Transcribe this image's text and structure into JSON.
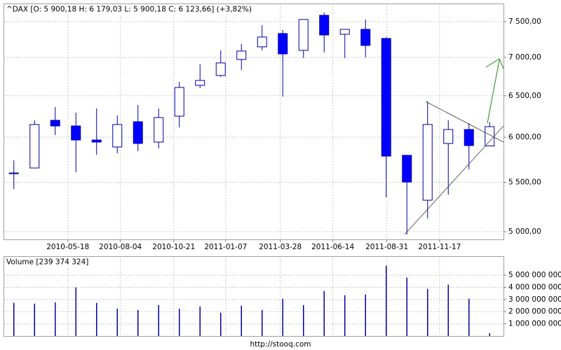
{
  "chart_data": [
    {
      "type": "candlestick",
      "title": "^DAX [O: 5 900,18  H: 6 179,03  L: 5 900,18  C: 6 123,66] (+3,82%)",
      "categories": [
        null,
        null,
        null,
        null,
        null,
        null,
        null,
        null,
        null,
        null,
        null,
        null,
        null,
        null,
        null,
        null,
        null,
        null,
        null,
        null,
        null,
        null,
        null,
        null
      ],
      "open": [
        5600,
        5654,
        6199,
        6132,
        5968,
        5888,
        6182,
        5944,
        6249,
        6632,
        6759,
        6972,
        7144,
        7329,
        7095,
        7592,
        7319,
        7389,
        7260,
        5794,
        5313,
        5928,
        6090,
        5900.18
      ],
      "high": [
        5739,
        6199,
        6360,
        6291,
        6343,
        6257,
        6385,
        6343,
        6676,
        6906,
        7095,
        7183,
        7449,
        7379,
        7531,
        7633,
        7389,
        7531,
        7280,
        5794,
        6429,
        6199,
        6165,
        6179.03
      ],
      "low": [
        5429,
        5650,
        6025,
        5608,
        5801,
        5817,
        5840,
        5872,
        6115,
        6596,
        6740,
        6832,
        7095,
        6490,
        6991,
        7066,
        6991,
        7001,
        5342,
        4973,
        5130,
        5371,
        5639,
        5900.18
      ],
      "close": [
        5600,
        6149,
        6132,
        5968,
        5944,
        6149,
        5928,
        6232,
        6605,
        6695,
        6925,
        7086,
        7280,
        7047,
        7531,
        7309,
        7389,
        7163,
        5785,
        5503,
        6149,
        6090,
        5904,
        6123.66
      ],
      "up_color": "#ffffff",
      "down_color": "#0000ff",
      "edge_color": "#0000a0",
      "log_scale": true,
      "grid": true,
      "ylim": [
        4926,
        7767
      ],
      "yticks": [
        {
          "value": 5000,
          "label": "5 000,00"
        },
        {
          "value": 5500,
          "label": "5 500,00"
        },
        {
          "value": 6000,
          "label": "6 000,00"
        },
        {
          "value": 6500,
          "label": "6 500,00"
        },
        {
          "value": 7000,
          "label": "7 000,00"
        },
        {
          "value": 7500,
          "label": "7 500,00"
        }
      ],
      "xticks": [
        {
          "value": 2.61,
          "label": "2010-05-18"
        },
        {
          "value": 5.15,
          "label": "2010-08-04"
        },
        {
          "value": 7.73,
          "label": "2010-10-21"
        },
        {
          "value": 10.24,
          "label": "2011-01-07"
        },
        {
          "value": 12.88,
          "label": "2011-03-28"
        },
        {
          "value": 15.42,
          "label": "2011-06-14"
        },
        {
          "value": 18.03,
          "label": "2011-08-31"
        },
        {
          "value": 20.58,
          "label": "2011-11-17"
        }
      ]
    },
    {
      "type": "bar",
      "title": "Volume [239 374 324]",
      "categories": [
        null,
        null,
        null,
        null,
        null,
        null,
        null,
        null,
        null,
        null,
        null,
        null,
        null,
        null,
        null,
        null,
        null,
        null,
        null,
        null,
        null,
        null,
        null,
        null
      ],
      "values": [
        2720000000,
        2660000000,
        2770000000,
        3990000000,
        2720000000,
        2250000000,
        2140000000,
        2540000000,
        2250000000,
        2430000000,
        1910000000,
        2490000000,
        2140000000,
        3060000000,
        2540000000,
        3700000000,
        3350000000,
        3410000000,
        5780000000,
        4800000000,
        3870000000,
        4220000000,
        3060000000,
        239374324
      ],
      "color": "#0000a0",
      "grid": true,
      "ylim": [
        0,
        6500000000
      ],
      "yticks": [
        {
          "value": 1000000000,
          "label": "1 000 000 000"
        },
        {
          "value": 2000000000,
          "label": "2 000 000 000"
        },
        {
          "value": 3000000000,
          "label": "3 000 000 000"
        },
        {
          "value": 4000000000,
          "label": "4 000 000 000"
        },
        {
          "value": 5000000000,
          "label": "5 000 000 000"
        }
      ]
    }
  ],
  "footer": "http://stooq.com"
}
